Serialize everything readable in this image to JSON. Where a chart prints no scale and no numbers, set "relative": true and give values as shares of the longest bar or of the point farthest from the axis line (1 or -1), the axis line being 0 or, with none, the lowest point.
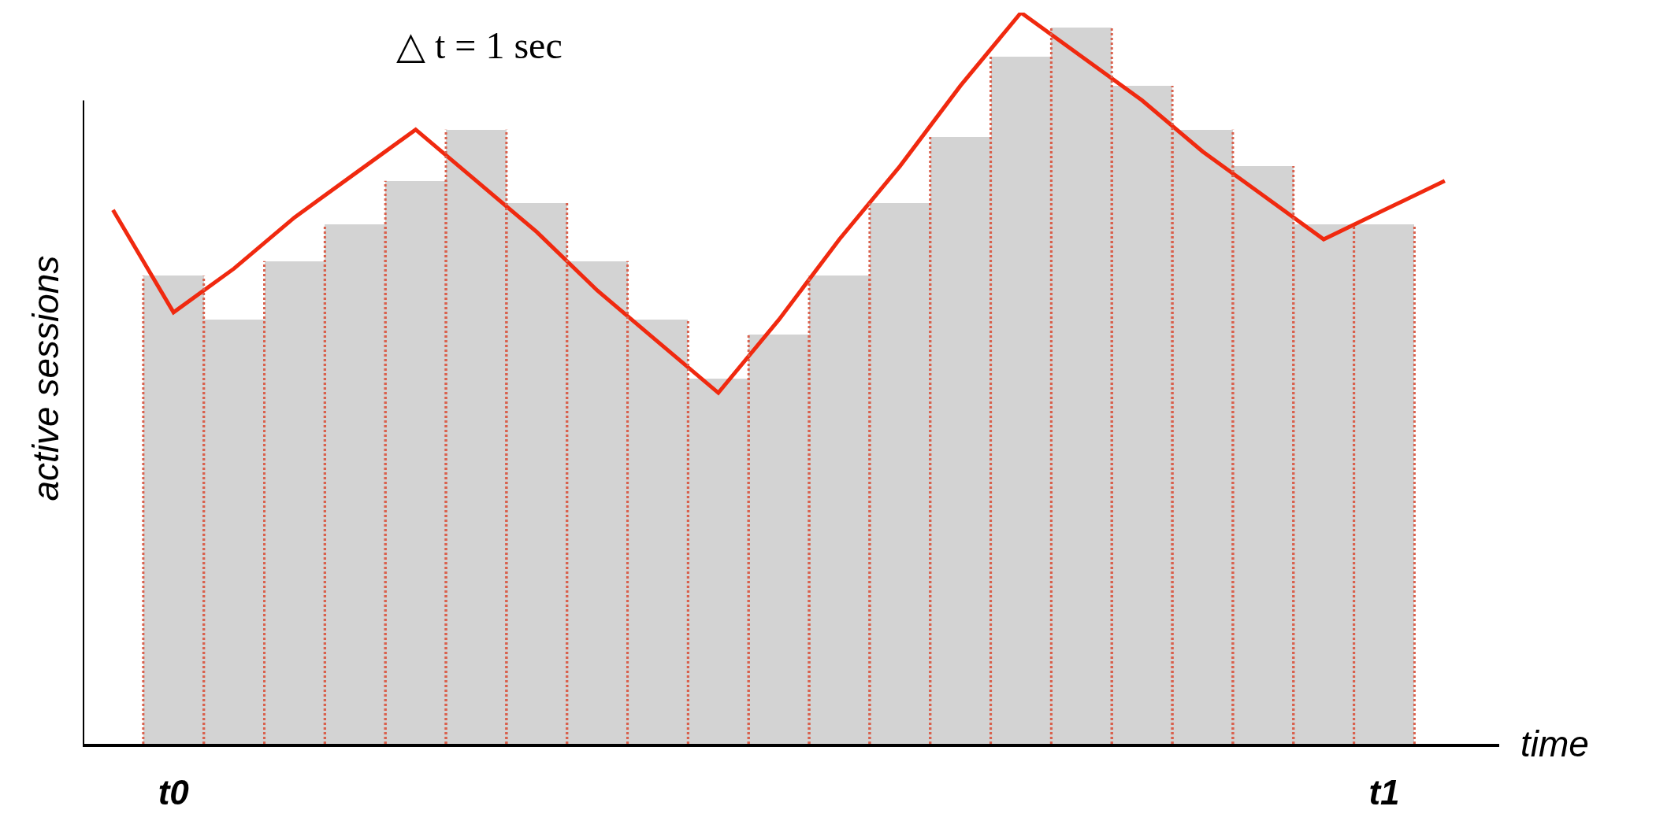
{
  "chart_data": {
    "type": "bar",
    "relative": true,
    "xlabel": "time",
    "ylabel": "active sessions",
    "annotations": [
      "△ t = 1 sec"
    ],
    "categories": [
      null,
      "t0",
      null,
      null,
      null,
      null,
      null,
      null,
      null,
      null,
      null,
      null,
      null,
      null,
      null,
      null,
      null,
      null,
      null,
      null,
      null,
      "t1",
      null
    ],
    "legend": false,
    "series": [
      {
        "color": "#d3d3d3",
        "line_style": "dotted",
        "values": [
          null,
          0.64,
          0.58,
          0.66,
          0.71,
          0.77,
          0.84,
          0.74,
          0.66,
          0.58,
          0.5,
          0.56,
          0.64,
          0.74,
          0.83,
          0.94,
          0.98,
          0.9,
          0.84,
          0.79,
          0.71,
          0.71,
          null
        ]
      },
      {
        "type": "line",
        "color": "#f0290f",
        "line_style": "solid",
        "values": [
          0.73,
          0.59,
          0.65,
          0.72,
          0.78,
          0.84,
          0.77,
          0.7,
          0.62,
          0.55,
          0.48,
          0.58,
          0.69,
          0.79,
          0.9,
          1.0,
          0.94,
          0.88,
          0.81,
          0.75,
          0.69,
          0.73,
          0.77
        ]
      }
    ]
  }
}
